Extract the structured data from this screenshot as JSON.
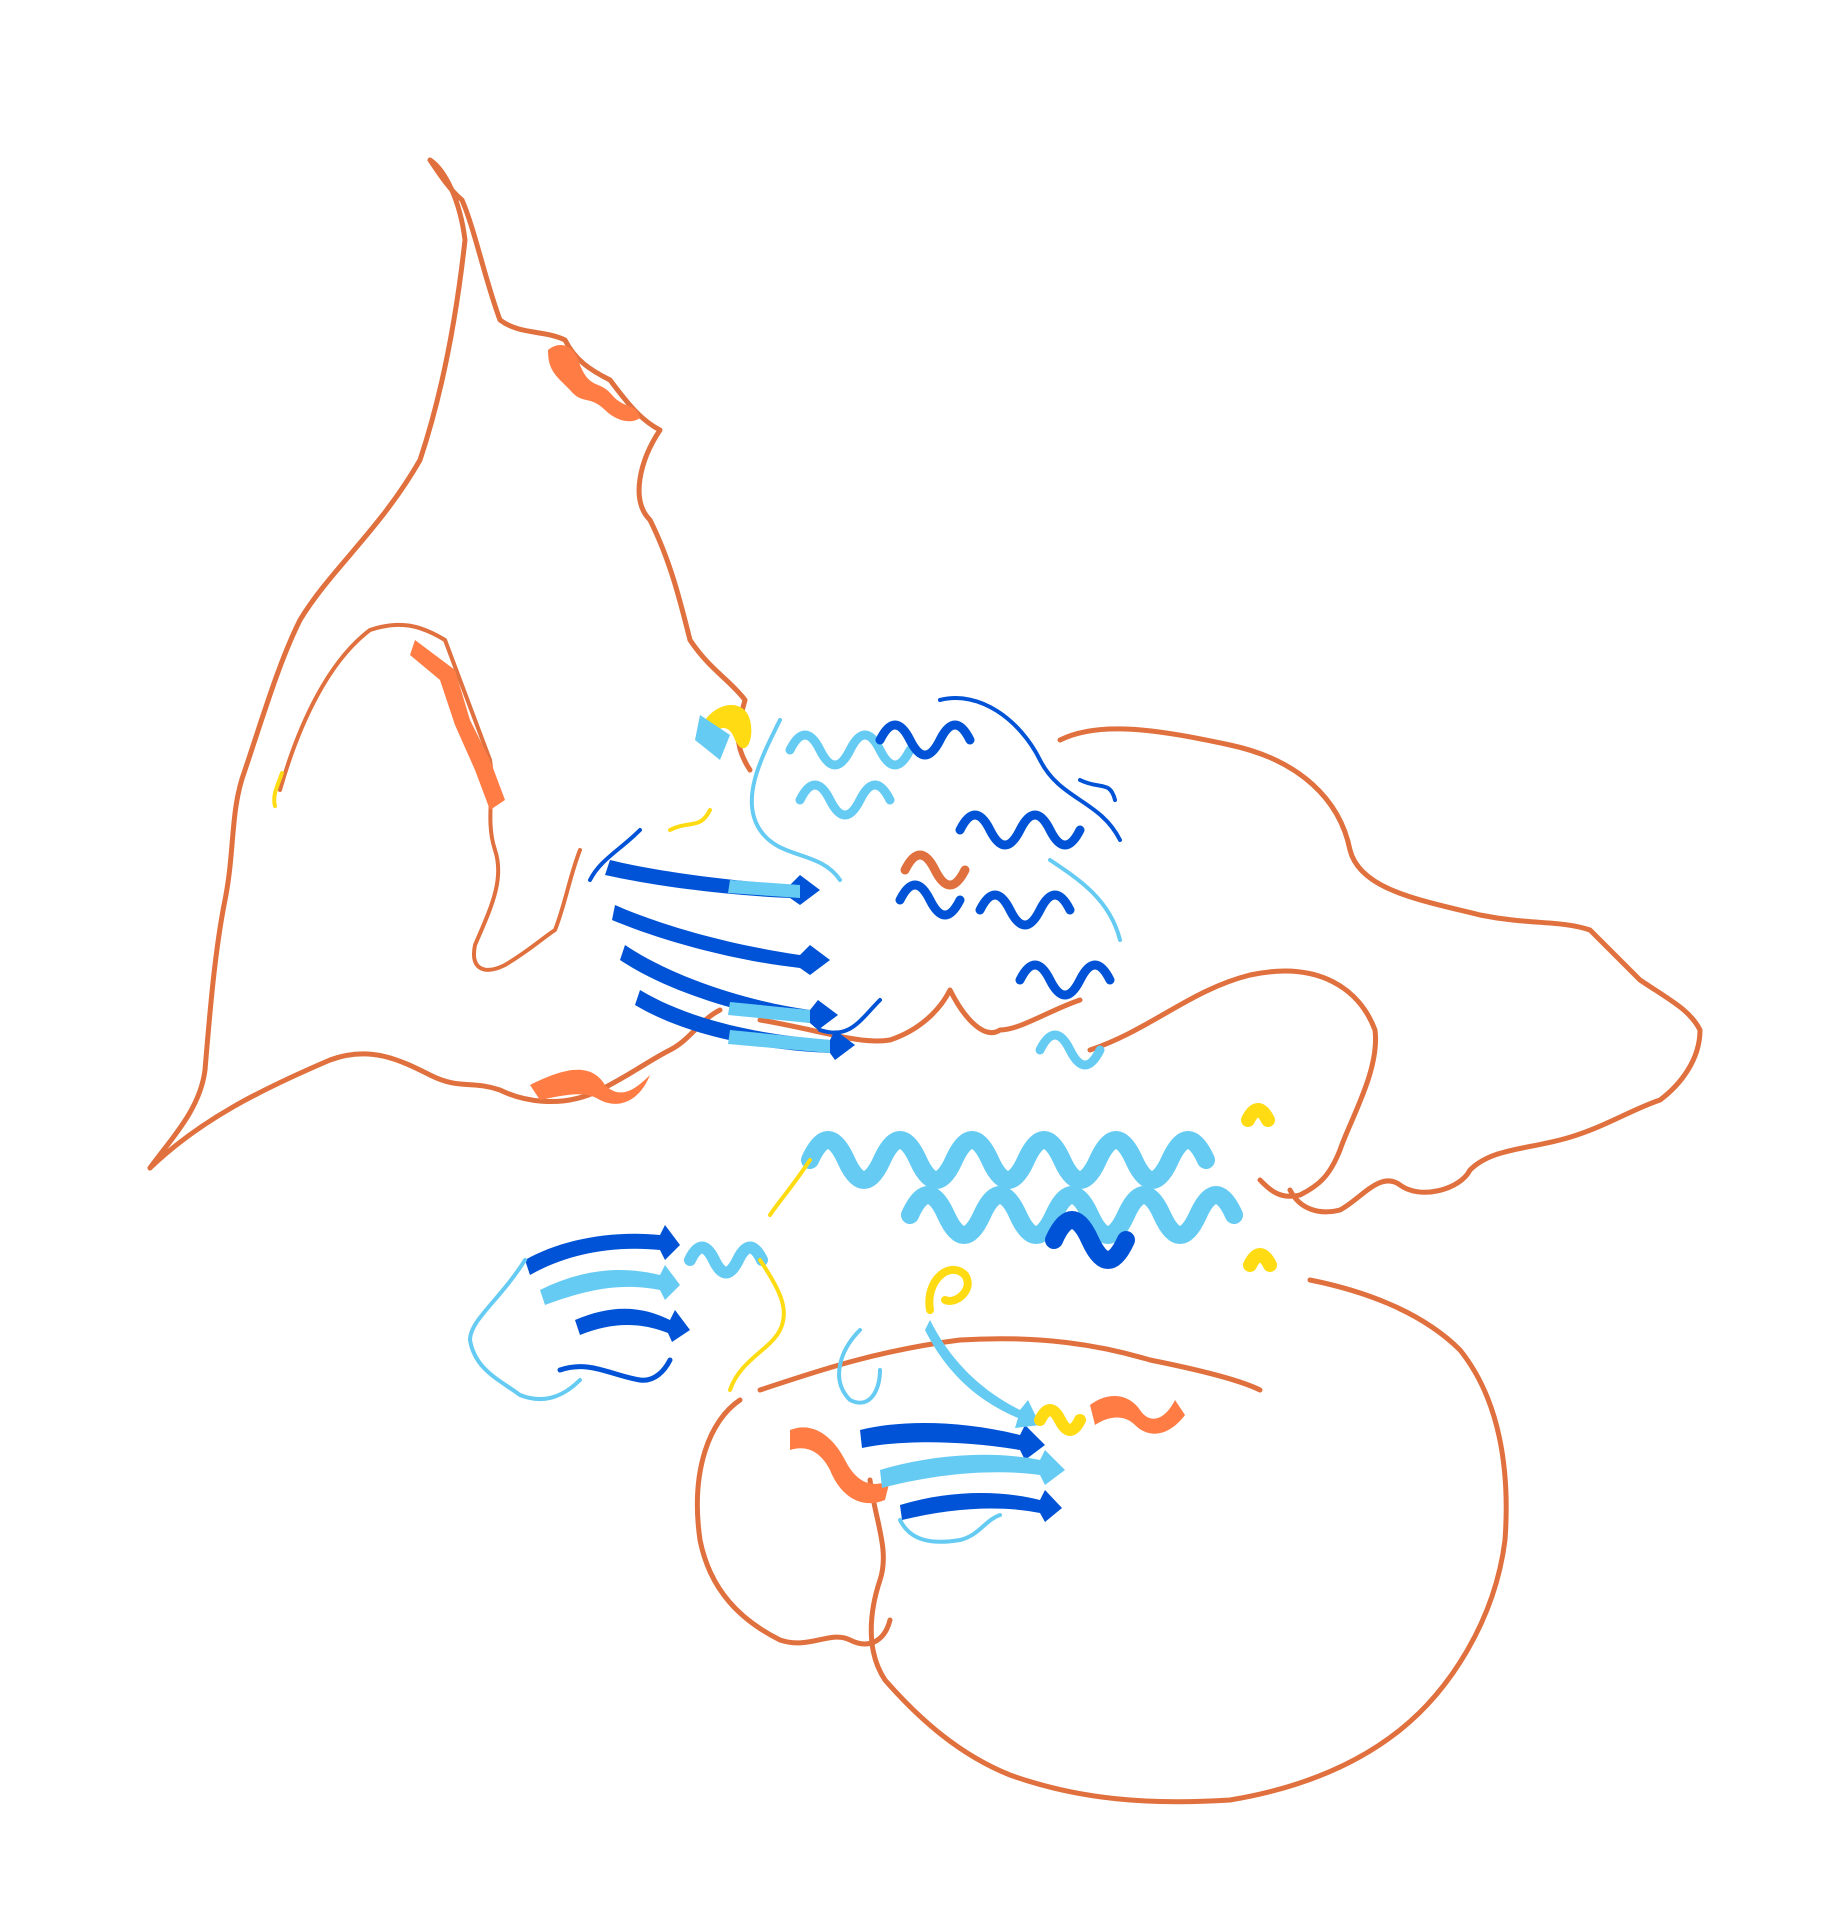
{
  "image": {
    "kind": "protein-structure-cartoon",
    "background": "#ffffff",
    "confidence_colors": {
      "very_high": "#0053D6",
      "confident": "#65CBF3",
      "low": "#FFDB13",
      "very_low": "#FF7D45"
    },
    "coil_color": "#E0703E",
    "regions": [
      {
        "name": "upper-globular-domain",
        "confidence": "very_high"
      },
      {
        "name": "coiled-coil-helices",
        "confidence": "confident"
      },
      {
        "name": "lower-beta-domain-left",
        "confidence": "very_high"
      },
      {
        "name": "lower-beta-domain-right",
        "confidence": "very_high"
      },
      {
        "name": "disordered-loops",
        "confidence": "very_low"
      }
    ]
  }
}
